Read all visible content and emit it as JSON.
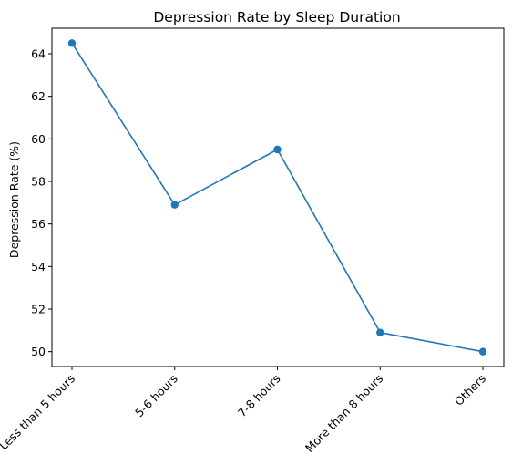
{
  "chart_data": {
    "type": "line",
    "title": "Depression Rate by Sleep Duration",
    "xlabel": "",
    "ylabel": "Depression Rate (%)",
    "categories": [
      "Less than 5 hours",
      "5-6 hours",
      "7-8 hours",
      "More than 8 hours",
      "Others"
    ],
    "series": [
      {
        "values": [
          64.5,
          56.9,
          59.5,
          50.9,
          50.0
        ]
      }
    ],
    "ylim": [
      49.3,
      65.2
    ],
    "yticks": [
      50,
      52,
      54,
      56,
      58,
      60,
      62,
      64
    ],
    "grid": false,
    "markers": true,
    "line_color": "#1f77b4"
  }
}
